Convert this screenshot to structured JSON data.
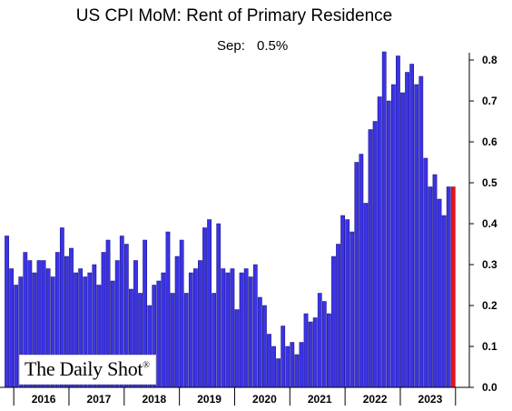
{
  "title": "US CPI MoM: Rent of Primary Residence",
  "annotation": {
    "label": "Sep:",
    "value": "0.5%"
  },
  "watermark": {
    "text": "The Daily Shot",
    "mark": "®"
  },
  "colors": {
    "bar": "#3b33e3",
    "bar_edge": "#15107a",
    "latest_bar": "#e8101c",
    "background": "#ffffff",
    "axis": "#000000"
  },
  "chart_data": {
    "type": "bar",
    "title": "US CPI MoM: Rent of Primary Residence",
    "xlabel": "",
    "ylabel": "",
    "ylim": [
      0,
      0.8
    ],
    "yticks": [
      "0.0",
      "0.1",
      "0.2",
      "0.3",
      "0.4",
      "0.5",
      "0.6",
      "0.7",
      "0.8"
    ],
    "y_axis_side": "right",
    "grid": false,
    "year_labels": [
      "2016",
      "2017",
      "2018",
      "2019",
      "2020",
      "2021",
      "2022",
      "2023"
    ],
    "start": "2015-10",
    "end": "2023-09",
    "values": [
      0.37,
      0.29,
      0.25,
      0.27,
      0.33,
      0.31,
      0.28,
      0.31,
      0.31,
      0.29,
      0.27,
      0.33,
      0.39,
      0.32,
      0.34,
      0.28,
      0.29,
      0.27,
      0.28,
      0.3,
      0.25,
      0.33,
      0.36,
      0.26,
      0.31,
      0.37,
      0.35,
      0.24,
      0.31,
      0.23,
      0.36,
      0.2,
      0.25,
      0.26,
      0.28,
      0.38,
      0.23,
      0.32,
      0.36,
      0.23,
      0.28,
      0.29,
      0.31,
      0.39,
      0.41,
      0.23,
      0.4,
      0.29,
      0.28,
      0.29,
      0.19,
      0.28,
      0.29,
      0.27,
      0.3,
      0.22,
      0.2,
      0.13,
      0.1,
      0.07,
      0.15,
      0.1,
      0.11,
      0.08,
      0.11,
      0.18,
      0.16,
      0.17,
      0.23,
      0.21,
      0.18,
      0.32,
      0.35,
      0.42,
      0.41,
      0.38,
      0.55,
      0.57,
      0.45,
      0.63,
      0.65,
      0.71,
      0.82,
      0.7,
      0.74,
      0.81,
      0.72,
      0.77,
      0.79,
      0.74,
      0.76,
      0.56,
      0.49,
      0.52,
      0.46,
      0.42,
      0.49,
      0.49
    ],
    "highlight_last": true
  }
}
